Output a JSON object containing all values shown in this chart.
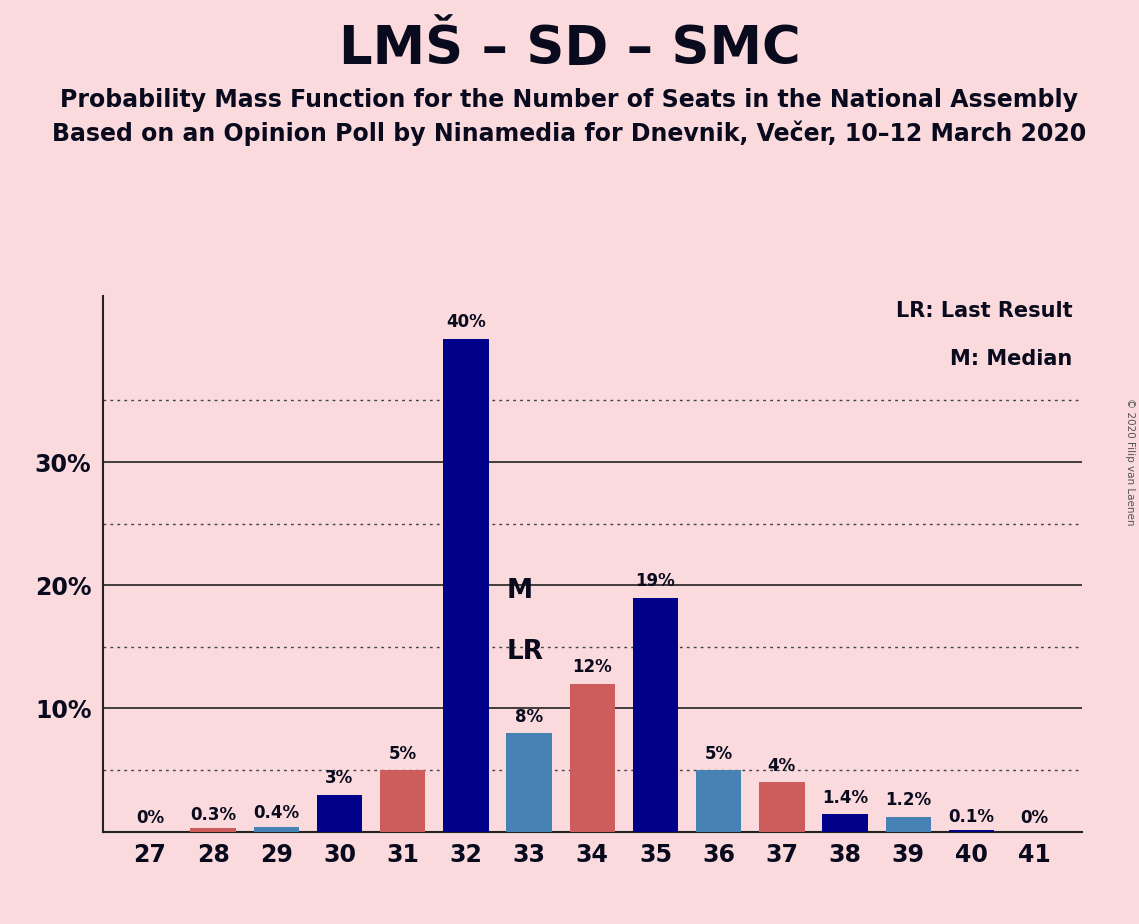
{
  "title": "LMŠ – SD – SMC",
  "subtitle1": "Probability Mass Function for the Number of Seats in the National Assembly",
  "subtitle2": "Based on an Opinion Poll by Ninamedia for Dnevnik, Večer, 10–12 March 2020",
  "copyright": "© 2020 Filip van Laenen",
  "legend_lr": "LR: Last Result",
  "legend_m": "M: Median",
  "seats": [
    27,
    28,
    29,
    30,
    31,
    32,
    33,
    34,
    35,
    36,
    37,
    38,
    39,
    40,
    41
  ],
  "values": [
    0.0,
    0.3,
    0.4,
    3.0,
    5.0,
    40.0,
    8.0,
    12.0,
    19.0,
    5.0,
    4.0,
    1.4,
    1.2,
    0.1,
    0.0
  ],
  "labels": [
    "0%",
    "0.3%",
    "0.4%",
    "3%",
    "5%",
    "40%",
    "8%",
    "12%",
    "19%",
    "5%",
    "4%",
    "1.4%",
    "1.2%",
    "0.1%",
    "0%"
  ],
  "colors": [
    "#00008B",
    "#CD5C5C",
    "#4682B4",
    "#00008B",
    "#CD5C5C",
    "#00008B",
    "#4682B4",
    "#CD5C5C",
    "#00008B",
    "#4682B4",
    "#CD5C5C",
    "#00008B",
    "#4682B4",
    "#00008B",
    "#00008B"
  ],
  "median_seat": 32,
  "lr_seat": 33,
  "background_color": "#FADADD",
  "solid_lines": [
    10,
    20,
    30
  ],
  "dotted_lines": [
    5,
    15,
    25,
    35
  ],
  "title_fontsize": 38,
  "subtitle_fontsize": 17,
  "bar_width": 0.72
}
